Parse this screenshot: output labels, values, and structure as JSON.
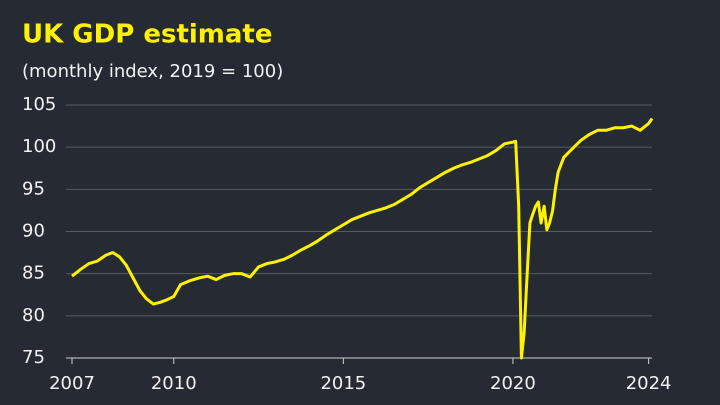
{
  "chart_data": {
    "type": "line",
    "title": "UK GDP estimate",
    "subtitle": "(monthly index, 2019 = 100)",
    "x": [
      2007.0,
      2007.25,
      2007.5,
      2007.75,
      2008.0,
      2008.2,
      2008.4,
      2008.6,
      2008.8,
      2009.0,
      2009.2,
      2009.4,
      2009.6,
      2009.8,
      2010.0,
      2010.2,
      2010.5,
      2010.75,
      2011.0,
      2011.25,
      2011.5,
      2011.75,
      2012.0,
      2012.25,
      2012.5,
      2012.75,
      2013.0,
      2013.25,
      2013.5,
      2013.75,
      2014.0,
      2014.25,
      2014.5,
      2014.75,
      2015.0,
      2015.25,
      2015.5,
      2015.75,
      2016.0,
      2016.25,
      2016.5,
      2016.75,
      2017.0,
      2017.25,
      2017.5,
      2017.75,
      2018.0,
      2018.25,
      2018.5,
      2018.75,
      2019.0,
      2019.25,
      2019.5,
      2019.75,
      2020.0,
      2020.08,
      2020.17,
      2020.25,
      2020.33,
      2020.42,
      2020.5,
      2020.58,
      2020.67,
      2020.75,
      2020.83,
      2020.92,
      2021.0,
      2021.08,
      2021.17,
      2021.25,
      2021.33,
      2021.5,
      2021.75,
      2022.0,
      2022.25,
      2022.5,
      2022.75,
      2023.0,
      2023.25,
      2023.5,
      2023.75,
      2024.0,
      2024.1
    ],
    "series": [
      {
        "name": "UK GDP",
        "color": "#fff200",
        "values": [
          84.7,
          85.5,
          86.2,
          86.5,
          87.2,
          87.5,
          87.0,
          86.0,
          84.5,
          83.0,
          82.0,
          81.4,
          81.6,
          81.9,
          82.3,
          83.7,
          84.2,
          84.5,
          84.7,
          84.3,
          84.8,
          85.0,
          85.0,
          84.6,
          85.8,
          86.2,
          86.4,
          86.7,
          87.2,
          87.8,
          88.3,
          88.9,
          89.6,
          90.2,
          90.8,
          91.4,
          91.8,
          92.2,
          92.5,
          92.8,
          93.2,
          93.8,
          94.4,
          95.2,
          95.8,
          96.4,
          97.0,
          97.5,
          97.9,
          98.2,
          98.6,
          99.0,
          99.6,
          100.4,
          100.6,
          100.7,
          93.0,
          75.0,
          78.0,
          85.0,
          91.0,
          92.0,
          93.0,
          93.5,
          91.0,
          93.0,
          90.2,
          91.0,
          92.5,
          95.0,
          97.0,
          98.8,
          99.8,
          100.8,
          101.5,
          102.0,
          102.0,
          102.3,
          102.3,
          102.5,
          102.0,
          102.8,
          103.4
        ]
      }
    ],
    "xlim": [
      2007,
      2024.1
    ],
    "xticks": [
      2007,
      2010,
      2015,
      2020,
      2024
    ],
    "ylim": [
      75,
      105
    ],
    "yticks": [
      75,
      80,
      85,
      90,
      95,
      100,
      105
    ],
    "grid": true
  }
}
